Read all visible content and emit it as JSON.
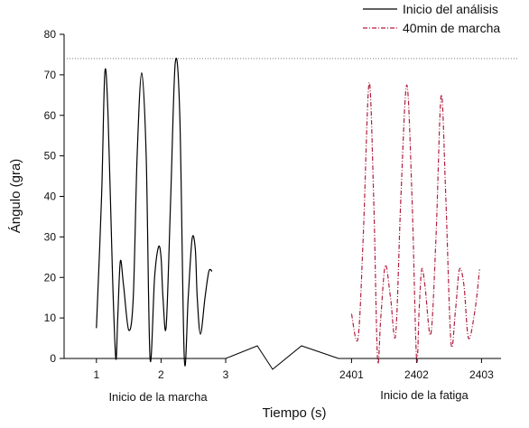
{
  "chart_data": {
    "type": "line",
    "xlabel": "Tiempo (s)",
    "ylabel": "Ángulo (gra)",
    "ylim": [
      0,
      80
    ],
    "yticks": [
      0,
      10,
      20,
      30,
      40,
      50,
      60,
      70,
      80
    ],
    "grid": false,
    "legend_position": "top-right",
    "reference_line": {
      "y": 74,
      "style": "dotted"
    },
    "axis_break": {
      "between": [
        3,
        2401
      ],
      "style": "zigzag"
    },
    "segments": [
      {
        "xlim": [
          0.5,
          3.0
        ],
        "xticks": [
          1,
          2,
          3
        ],
        "label": "Inicio de la marcha"
      },
      {
        "xlim": [
          2400.8,
          2403.3
        ],
        "xticks": [
          2401,
          2402,
          2403
        ],
        "label": "Inicio de la fatiga"
      }
    ],
    "series": [
      {
        "name": "Inicio del análisis",
        "color": "#000000",
        "style": "solid",
        "segment": 0,
        "x": [
          1.0,
          1.08,
          1.13,
          1.18,
          1.25,
          1.3,
          1.33,
          1.37,
          1.42,
          1.5,
          1.57,
          1.63,
          1.7,
          1.77,
          1.83,
          1.9,
          1.96,
          2.0,
          2.03,
          2.08,
          2.15,
          2.22,
          2.29,
          2.36,
          2.42,
          2.48,
          2.53,
          2.56,
          2.61,
          2.68,
          2.74,
          2.79
        ],
        "values": [
          7.5,
          40,
          70.5,
          60,
          20,
          0,
          10,
          24,
          18,
          7,
          15,
          50,
          70.5,
          50,
          0,
          20,
          27.5,
          25,
          15,
          8,
          40,
          73,
          60,
          0,
          15,
          29.5,
          27,
          15,
          6,
          15,
          21.5,
          21.5
        ]
      },
      {
        "name": "40min de marcha",
        "color": "#b01e3e",
        "style": "dashdot",
        "segment": 1,
        "x": [
          2401.0,
          2401.1,
          2401.18,
          2401.27,
          2401.34,
          2401.4,
          2401.45,
          2401.52,
          2401.6,
          2401.68,
          2401.76,
          2401.85,
          2401.93,
          2402.0,
          2402.04,
          2402.08,
          2402.13,
          2402.22,
          2402.3,
          2402.38,
          2402.45,
          2402.53,
          2402.6,
          2402.66,
          2402.73,
          2402.8,
          2402.9,
          2402.97
        ],
        "values": [
          11,
          5,
          30,
          68,
          40,
          0,
          10,
          23,
          15,
          6,
          40,
          67.5,
          40,
          0,
          12,
          22,
          18,
          6,
          30,
          65,
          40,
          4,
          12,
          22,
          18,
          5,
          12,
          22
        ]
      }
    ]
  }
}
